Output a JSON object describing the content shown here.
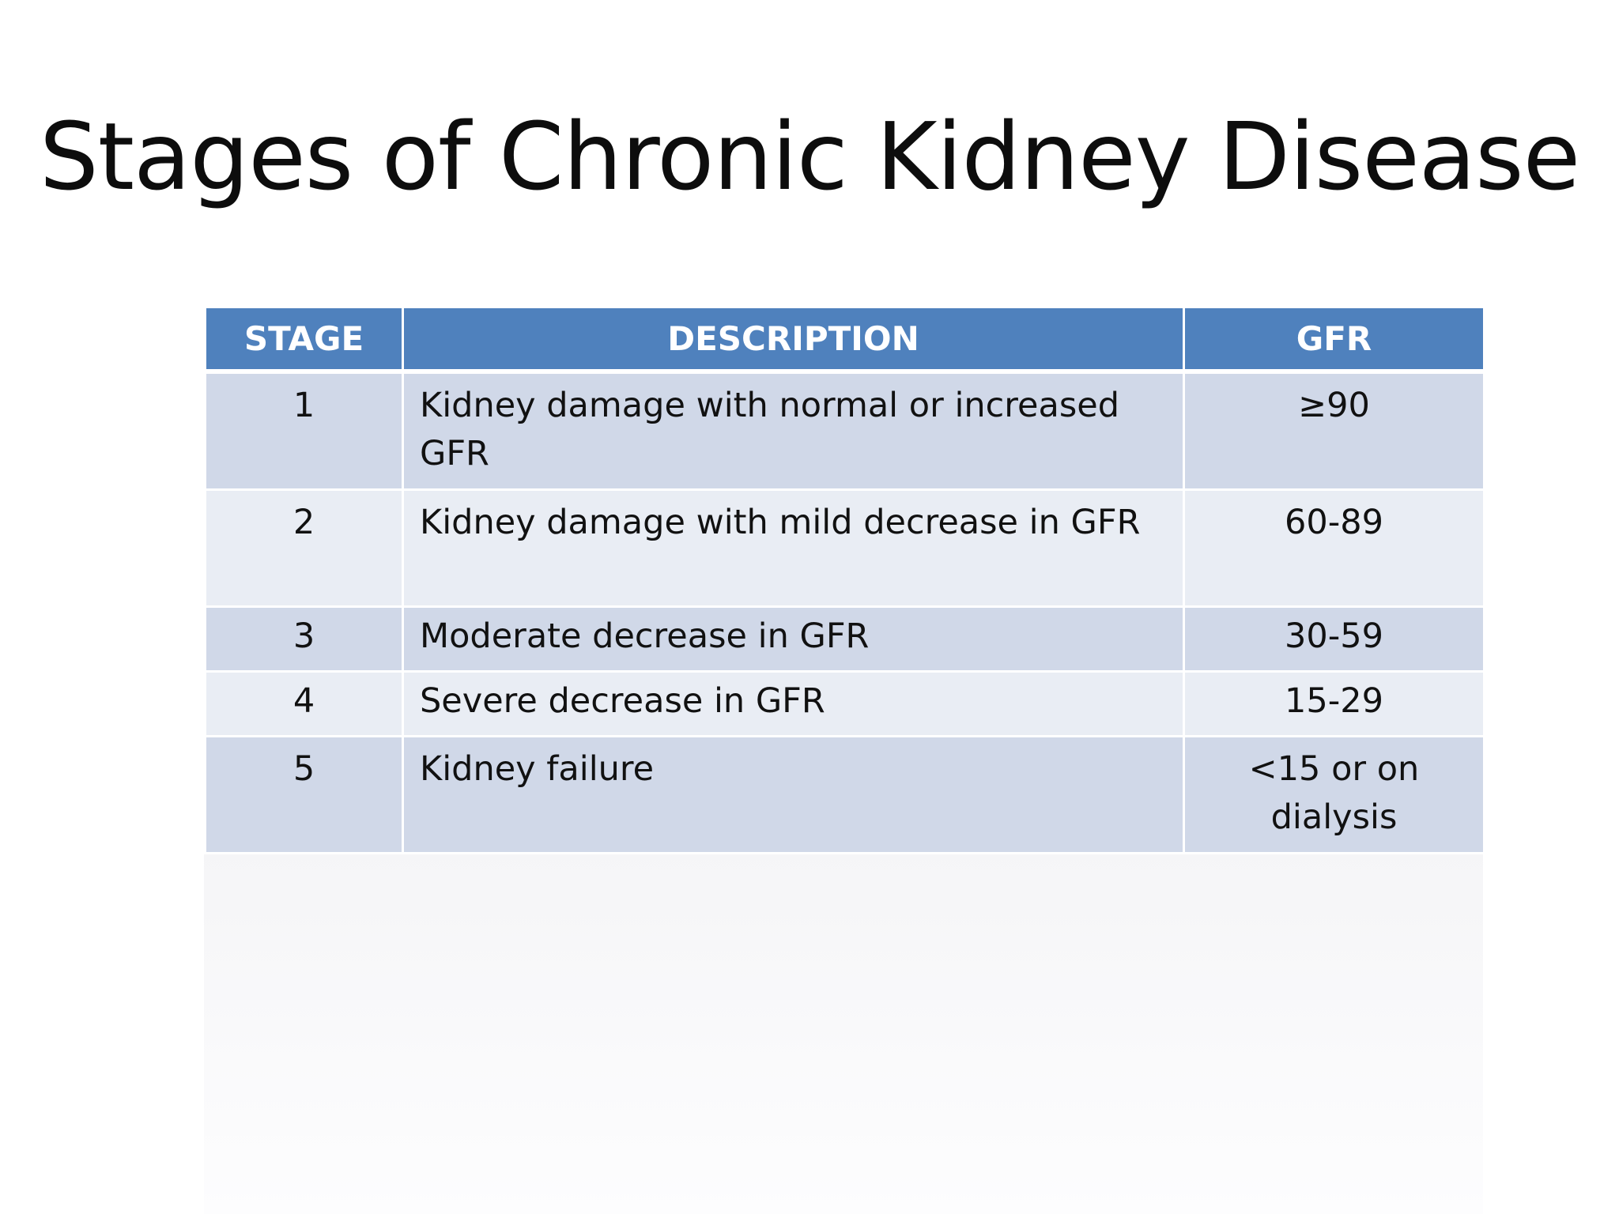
{
  "slide": {
    "title": "Stages of Chronic Kidney Disease"
  },
  "table": {
    "headers": {
      "stage": "STAGE",
      "description": "DESCRIPTION",
      "gfr": "GFR"
    },
    "rows": [
      {
        "stage": "1",
        "description": "Kidney damage with normal or increased GFR",
        "gfr": "≥90"
      },
      {
        "stage": "2",
        "description": "Kidney damage with mild decrease in GFR",
        "gfr": "60-89"
      },
      {
        "stage": "3",
        "description": "Moderate decrease in GFR",
        "gfr": "30-59"
      },
      {
        "stage": "4",
        "description": "Severe decrease in GFR",
        "gfr": "15-29"
      },
      {
        "stage": "5",
        "description": "Kidney failure",
        "gfr": "<15 or on dialysis"
      }
    ]
  },
  "colors": {
    "header_bg": "#4f81bd",
    "row_odd_bg": "#d0d8e8",
    "row_even_bg": "#e9edf4",
    "header_text": "#ffffff"
  }
}
